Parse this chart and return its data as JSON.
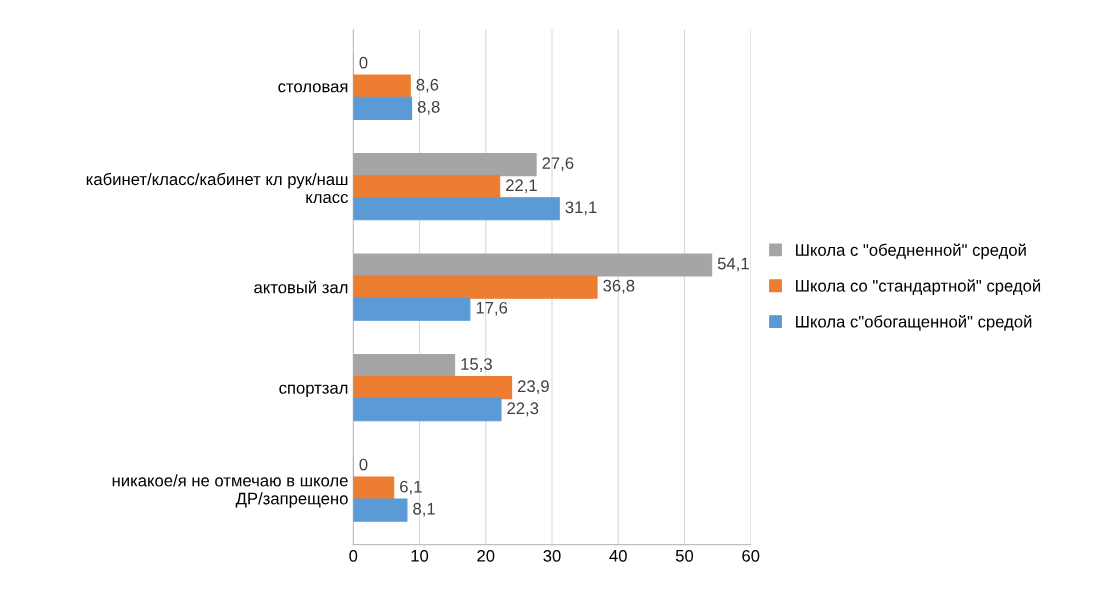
{
  "chart_data": {
    "type": "bar",
    "orientation": "horizontal",
    "categories": [
      "столовая",
      "кабинет/класс/кабинет кл рук/наш\nкласс",
      "актовый зал",
      "спортзал",
      "никакое/я не отмечаю в школе\nДР/запрещено"
    ],
    "series": [
      {
        "name": "Школа с \"обедненной\" средой",
        "color": "#a5a5a5",
        "values": [
          0,
          27.6,
          54.1,
          15.3,
          0
        ],
        "value_labels": [
          "0",
          "27,6",
          "54,1",
          "15,3",
          "0"
        ]
      },
      {
        "name": "Школа со \"стандартной\" средой",
        "color": "#ed7d31",
        "values": [
          8.6,
          22.1,
          36.8,
          23.9,
          6.1
        ],
        "value_labels": [
          "8,6",
          "22,1",
          "36,8",
          "23,9",
          "6,1"
        ]
      },
      {
        "name": "Школа с\"обогащенной\" средой",
        "color": "#5b9bd5",
        "values": [
          8.8,
          31.1,
          17.6,
          22.3,
          8.1
        ],
        "value_labels": [
          "8,8",
          "31,1",
          "17,6",
          "22,3",
          "8,1"
        ]
      }
    ],
    "xlim": [
      0,
      60
    ],
    "xticks": [
      0,
      10,
      20,
      30,
      40,
      50,
      60
    ],
    "grid": "x",
    "legend": "right"
  }
}
